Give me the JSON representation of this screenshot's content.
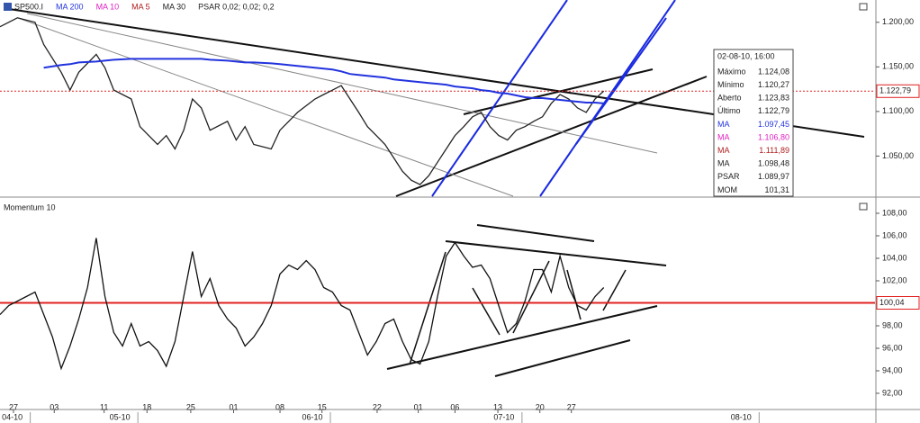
{
  "chart_data": [
    {
      "type": "line",
      "legend": [
        "SP500.I"
      ],
      "indicators": [
        {
          "name": "MA 10",
          "color": "#e020c0"
        },
        {
          "name": "MA 5",
          "color": "#b02020"
        },
        {
          "name": "MA 30",
          "color": "#222222"
        },
        {
          "name": "PSAR 0,02; 0,02; 0,2",
          "color": "#222222"
        }
      ],
      "x": [
        0,
        2,
        4,
        5,
        7,
        8,
        9,
        11,
        12,
        13,
        15,
        16,
        17,
        18,
        19,
        20,
        21,
        22,
        23,
        24,
        26,
        27,
        28,
        29,
        31,
        32,
        33,
        34,
        36,
        37,
        38,
        39,
        40,
        41,
        42,
        43,
        44,
        45,
        46,
        47,
        48,
        49,
        50,
        51,
        52,
        53,
        54,
        55,
        56,
        57,
        58,
        59,
        60,
        61,
        62,
        63,
        64,
        65,
        66,
        67,
        68,
        69
      ],
      "series": [
        {
          "name": "SP500.I",
          "color": "#222222",
          "values": [
            1195,
            1205,
            1200,
            1175,
            1144,
            1124,
            1144,
            1164,
            1149,
            1124,
            1114,
            1083,
            1073,
            1063,
            1073,
            1058,
            1079,
            1114,
            1104,
            1079,
            1089,
            1068,
            1083,
            1063,
            1058,
            1079,
            1089,
            1099,
            1114,
            1119,
            1124,
            1129,
            1114,
            1099,
            1083,
            1073,
            1063,
            1048,
            1033,
            1023,
            1018,
            1028,
            1043,
            1058,
            1073,
            1083,
            1094,
            1099,
            1083,
            1073,
            1068,
            1079,
            1083,
            1089,
            1094,
            1109,
            1119,
            1114,
            1104,
            1099,
            1114,
            1123
          ]
        },
        {
          "name": "MA 200",
          "color": "#2233dd",
          "values": [
            null,
            null,
            null,
            1149,
            1152,
            1153,
            1155,
            1156,
            1157,
            1158,
            1159,
            1159,
            1159,
            1159,
            1159,
            1159,
            1159,
            1159,
            1159,
            1158,
            1157,
            1156,
            1155,
            1155,
            1154,
            1153,
            1152,
            1151,
            1149,
            1148,
            1147,
            1145,
            1142,
            1141,
            1140,
            1139,
            1138,
            1136,
            1135,
            1134,
            1133,
            1132,
            1131,
            1130,
            1128,
            1127,
            1126,
            1124,
            1123,
            1121,
            1120,
            1118,
            1116,
            1115,
            1115,
            1114,
            1113,
            1112,
            1111,
            1110,
            1110,
            1109
          ]
        }
      ],
      "xlim": [
        0,
        100
      ],
      "ylim": [
        1005,
        1225
      ],
      "yticks": [
        {
          "value": 1050,
          "label": "1.050,00"
        },
        {
          "value": 1100,
          "label": "1.100,00"
        },
        {
          "value": 1150,
          "label": "1.150,00"
        },
        {
          "value": 1200,
          "label": "1.200,00"
        }
      ],
      "xticks": [
        {
          "value": 1.54,
          "label": "27"
        },
        {
          "value": 6.2,
          "label": "03"
        },
        {
          "value": 11.9,
          "label": "11"
        },
        {
          "value": 16.8,
          "label": "18"
        },
        {
          "value": 21.8,
          "label": "25"
        },
        {
          "value": 26.7,
          "label": "01"
        },
        {
          "value": 32,
          "label": "08"
        },
        {
          "value": 36.8,
          "label": "15"
        },
        {
          "value": 43.1,
          "label": "22"
        },
        {
          "value": 47.8,
          "label": "01"
        },
        {
          "value": 52,
          "label": "06"
        },
        {
          "value": 56.9,
          "label": "13"
        },
        {
          "value": 61.7,
          "label": "20"
        },
        {
          "value": 65.3,
          "label": "27"
        }
      ],
      "month_ticks": [
        {
          "value": 1.4,
          "label": "04-10"
        },
        {
          "value": 13.7,
          "label": "05-10"
        },
        {
          "value": 35.7,
          "label": "06-10"
        },
        {
          "value": 57.6,
          "label": "07-10"
        },
        {
          "value": 84.7,
          "label": "08-10"
        }
      ],
      "reference": {
        "value": 1122.79,
        "label": "1.122,79",
        "color": "#e02020"
      },
      "info_box": {
        "title": "02-08-10, 16:00",
        "rows": [
          {
            "label": "Máximo",
            "value": "1.124,08",
            "color": "#222222"
          },
          {
            "label": "Mínimo",
            "value": "1.120,27",
            "color": "#222222"
          },
          {
            "label": "Aberto",
            "value": "1.123,83",
            "color": "#222222"
          },
          {
            "label": "Último",
            "value": "1.122,79",
            "color": "#222222"
          },
          {
            "label": "MA",
            "value": "1.097,45",
            "color": "#2233dd"
          },
          {
            "label": "MA",
            "value": "1.106,80",
            "color": "#e020c0"
          },
          {
            "label": "MA",
            "value": "1.111,89",
            "color": "#b02020"
          },
          {
            "label": "MA",
            "value": "1.098,48",
            "color": "#222222"
          },
          {
            "label": "PSAR",
            "value": "1.089,97",
            "color": "#222222"
          },
          {
            "label": "MOM",
            "value": "101,31",
            "color": "#222222"
          }
        ]
      }
    },
    {
      "type": "line",
      "title": "Momentum 10",
      "color": "#111111",
      "x": [
        0,
        1,
        3,
        4,
        5,
        6,
        7,
        8,
        9,
        10,
        11,
        12,
        13,
        14,
        15,
        16,
        17,
        18,
        19,
        20,
        21,
        22,
        23,
        24,
        25,
        26,
        27,
        28,
        29,
        30,
        31,
        32,
        33,
        34,
        35,
        36,
        37,
        38,
        39,
        40,
        41,
        42,
        43,
        44,
        45,
        46,
        47,
        48,
        49,
        50,
        51,
        52,
        53,
        54,
        55,
        56,
        57,
        58,
        59,
        60,
        61,
        62,
        63,
        64,
        65,
        66,
        67,
        68,
        69
      ],
      "values": [
        99.0,
        99.8,
        100.6,
        101.0,
        99.0,
        97.0,
        94.2,
        96.2,
        98.6,
        101.4,
        105.8,
        100.6,
        97.4,
        96.2,
        98.2,
        96.2,
        96.6,
        95.8,
        94.4,
        96.6,
        100.6,
        104.6,
        100.6,
        102.2,
        99.8,
        98.6,
        97.8,
        96.2,
        97.0,
        98.2,
        99.8,
        102.6,
        103.4,
        103.0,
        103.8,
        103.0,
        101.4,
        101.0,
        99.8,
        99.4,
        97.4,
        95.4,
        96.6,
        98.2,
        98.6,
        96.6,
        95.0,
        94.6,
        96.6,
        100.6,
        104.2,
        105.4,
        104.2,
        103.2,
        103.4,
        102.2,
        99.8,
        97.4,
        98.2,
        100.2,
        103.0,
        103.0,
        101.0,
        104.2,
        101.4,
        99.8,
        99.4,
        100.6,
        101.4
      ],
      "xlim": [
        0,
        100
      ],
      "ylim": [
        90.56,
        109.2
      ],
      "yticks": [
        {
          "value": 92,
          "label": "92,00"
        },
        {
          "value": 94,
          "label": "94,00"
        },
        {
          "value": 96,
          "label": "96,00"
        },
        {
          "value": 98,
          "label": "98,00"
        },
        {
          "value": 100,
          "label": "100,00"
        },
        {
          "value": 102,
          "label": "102,00"
        },
        {
          "value": 104,
          "label": "104,00"
        },
        {
          "value": 106,
          "label": "106,00"
        },
        {
          "value": 108,
          "label": "108,00"
        }
      ],
      "reference": {
        "value": 100.04,
        "label": "100,04",
        "color": "#e02020"
      }
    }
  ]
}
